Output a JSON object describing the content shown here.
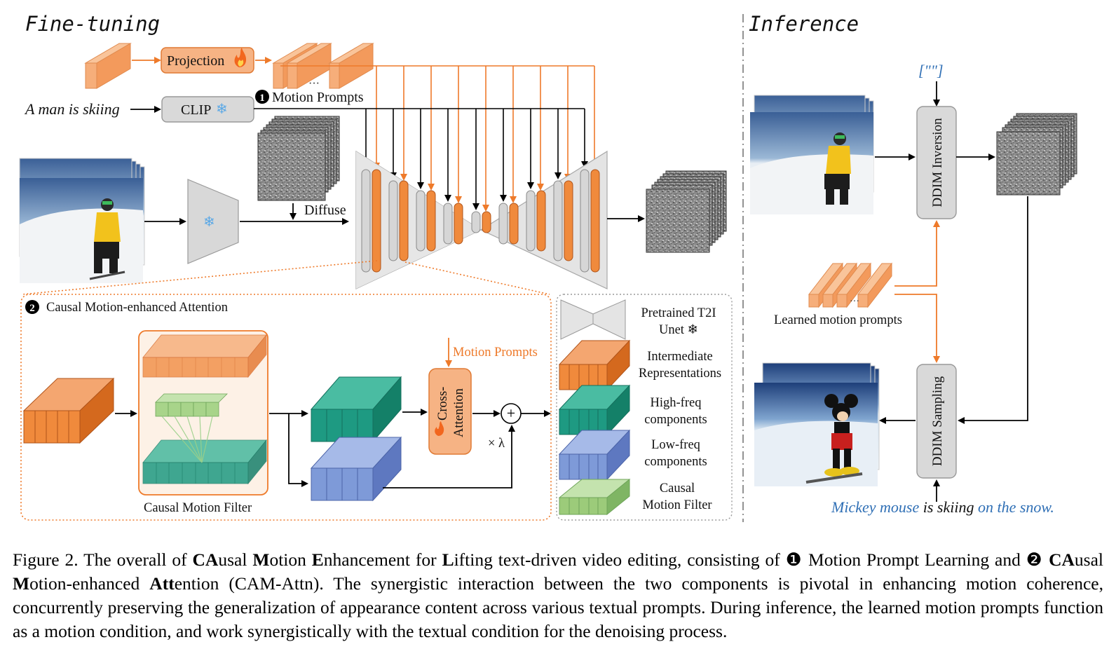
{
  "sections": {
    "finetune": "Fine-tuning",
    "inference": "Inference"
  },
  "labels": {
    "projection": "Projection",
    "clip": "CLIP",
    "text_prompt": "A man is skiing",
    "motion_prompts_title": "Motion Prompts",
    "motion_prompts_num": "❶",
    "diffuse": "Diffuse",
    "cam_num": "❷",
    "cam_title": "Causal Motion-enhanced Attention",
    "causal_motion_filter": "Causal Motion Filter",
    "motion_prompts_in": "Motion Prompts",
    "cross_attention_1": "Cross-",
    "cross_attention_2": "Attention",
    "plus": "+",
    "lambda": "× λ",
    "ellipsis": "···"
  },
  "legend": [
    {
      "line1": "Pretrained T2I",
      "line2": "Unet ❄",
      "kind": "unet"
    },
    {
      "line1": "Intermediate",
      "line2": "Representations",
      "kind": "orange",
      "color": "#F08A3C"
    },
    {
      "line1": "High-freq",
      "line2": "components",
      "kind": "teal",
      "color": "#1E9A82"
    },
    {
      "line1": "Low-freq",
      "line2": "components",
      "kind": "blue",
      "color": "#7E9AD8"
    },
    {
      "line1": "Causal",
      "line2": "Motion Filter",
      "kind": "green",
      "color": "#9CCB7A"
    }
  ],
  "inference": {
    "empty_prompt": "[\"\"]",
    "ddim_inversion": "DDIM Inversion",
    "ddim_sampling": "DDIM Sampling",
    "learned_motion_prompts": "Learned motion prompts",
    "target_prompt_a": "Mickey mouse",
    "target_prompt_b": " is skiing ",
    "target_prompt_c": "on the snow."
  },
  "caption": {
    "p1": "Figure 2.  The overall of ",
    "b1": "CA",
    "p2": "usal ",
    "b2": "M",
    "p3": "otion ",
    "b3": "E",
    "p4": "nhancement for ",
    "b4": "L",
    "p5": "ifting text-driven video editing, consisting of ❶ Motion Prompt Learning and ❷ ",
    "b5": "CA",
    "p6": "usal ",
    "b6": "M",
    "p7": "otion-enhanced ",
    "b7": "Att",
    "p8": "ention (CAM-Attn). The synergistic interaction between the two components is pivotal in enhancing motion coherence, concurrently preserving the generalization of appearance content across various textual prompts. During inference, the learned motion prompts function as a motion condition, and work synergistically with the textual condition for the denoising process."
  },
  "colors": {
    "orange": "#F08A3C",
    "orange_line": "#EE7A2A",
    "teal": "#1E9A82",
    "blue": "#7E9AD8",
    "green": "#9CCB7A",
    "link_blue": "#2F6FB5"
  }
}
